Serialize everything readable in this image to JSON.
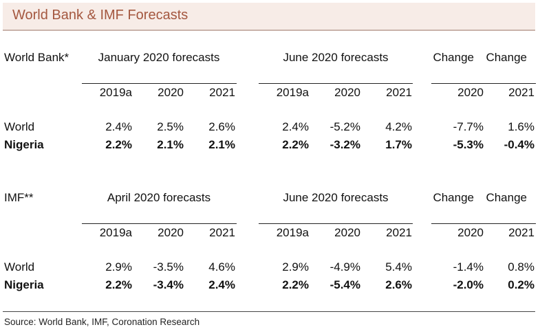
{
  "title": "World Bank & IMF Forecasts",
  "source": "Source: World Bank, IMF, Coronation Research",
  "sections": [
    {
      "label": "World Bank*",
      "group1_title": "January 2020 forecasts",
      "group2_title": "June 2020 forecasts",
      "change1_title": "Change",
      "change2_title": "Change",
      "col_headers": [
        "2019a",
        "2020",
        "2021",
        "2019a",
        "2020",
        "2021",
        "2020",
        "2021"
      ],
      "rows": [
        {
          "name": "World",
          "values": [
            "2.4%",
            "2.5%",
            "2.6%",
            "2.4%",
            "-5.2%",
            "4.2%",
            "-7.7%",
            "1.6%"
          ]
        },
        {
          "name": "Nigeria",
          "values": [
            "2.2%",
            "2.1%",
            "2.1%",
            "2.2%",
            "-3.2%",
            "1.7%",
            "-5.3%",
            "-0.4%"
          ]
        }
      ]
    },
    {
      "label": "IMF**",
      "group1_title": "April 2020 forecasts",
      "group2_title": "June 2020 forecasts",
      "change1_title": "Change",
      "change2_title": "Change",
      "col_headers": [
        "2019a",
        "2020",
        "2021",
        "2019a",
        "2020",
        "2021",
        "2020",
        "2021"
      ],
      "rows": [
        {
          "name": "World",
          "values": [
            "2.9%",
            "-3.5%",
            "4.6%",
            "2.9%",
            "-4.9%",
            "5.4%",
            "-1.4%",
            "0.8%"
          ]
        },
        {
          "name": "Nigeria",
          "values": [
            "2.2%",
            "-3.4%",
            "2.4%",
            "2.2%",
            "-5.4%",
            "2.6%",
            "-2.0%",
            "0.2%"
          ]
        }
      ]
    }
  ]
}
